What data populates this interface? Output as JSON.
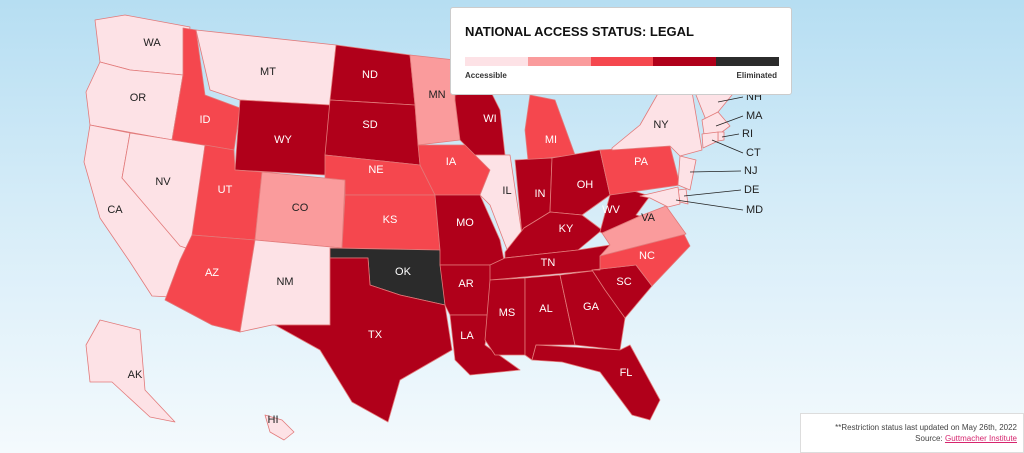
{
  "legend": {
    "title": "NATIONAL ACCESS STATUS: LEGAL",
    "colors": [
      "#fde2e6",
      "#fa9b9c",
      "#f5474e",
      "#b0001a",
      "#2b2b2b"
    ],
    "low_label": "Accessible",
    "high_label": "Eliminated"
  },
  "states": [
    {
      "label": "WA",
      "color": "#fde2e6"
    },
    {
      "label": "OR",
      "color": "#fde2e6"
    },
    {
      "label": "CA",
      "color": "#fde2e6"
    },
    {
      "label": "NV",
      "color": "#fde2e6"
    },
    {
      "label": "ID",
      "color": "#f5474e"
    },
    {
      "label": "MT",
      "color": "#fde2e6"
    },
    {
      "label": "WY",
      "color": "#b0001a"
    },
    {
      "label": "UT",
      "color": "#f5474e"
    },
    {
      "label": "AZ",
      "color": "#f5474e"
    },
    {
      "label": "CO",
      "color": "#fa9b9c"
    },
    {
      "label": "NM",
      "color": "#fde2e6"
    },
    {
      "label": "ND",
      "color": "#b0001a"
    },
    {
      "label": "SD",
      "color": "#b0001a"
    },
    {
      "label": "NE",
      "color": "#f5474e"
    },
    {
      "label": "KS",
      "color": "#f5474e"
    },
    {
      "label": "OK",
      "color": "#2b2b2b"
    },
    {
      "label": "TX",
      "color": "#b0001a"
    },
    {
      "label": "MN",
      "color": "#fa9b9c"
    },
    {
      "label": "IA",
      "color": "#f5474e"
    },
    {
      "label": "MO",
      "color": "#b0001a"
    },
    {
      "label": "AR",
      "color": "#b0001a"
    },
    {
      "label": "LA",
      "color": "#b0001a"
    },
    {
      "label": "WI",
      "color": "#b0001a"
    },
    {
      "label": "IL",
      "color": "#fde2e6"
    },
    {
      "label": "MI",
      "color": "#f5474e"
    },
    {
      "label": "IN",
      "color": "#b0001a"
    },
    {
      "label": "OH",
      "color": "#b0001a"
    },
    {
      "label": "KY",
      "color": "#b0001a"
    },
    {
      "label": "TN",
      "color": "#b0001a"
    },
    {
      "label": "MS",
      "color": "#b0001a"
    },
    {
      "label": "AL",
      "color": "#b0001a"
    },
    {
      "label": "GA",
      "color": "#b0001a"
    },
    {
      "label": "FL",
      "color": "#b0001a"
    },
    {
      "label": "SC",
      "color": "#b0001a"
    },
    {
      "label": "NC",
      "color": "#f5474e"
    },
    {
      "label": "VA",
      "color": "#fa9b9c"
    },
    {
      "label": "WV",
      "color": "#b0001a"
    },
    {
      "label": "PA",
      "color": "#f5474e"
    },
    {
      "label": "NY",
      "color": "#fde2e6"
    },
    {
      "label": "AK",
      "color": "#fde2e6"
    },
    {
      "label": "HI",
      "color": "#fde2e6"
    },
    {
      "label": "NH",
      "color": "#fde2e6"
    },
    {
      "label": "MA",
      "color": "#fde2e6"
    },
    {
      "label": "RI",
      "color": "#fde2e6"
    },
    {
      "label": "CT",
      "color": "#fde2e6"
    },
    {
      "label": "NJ",
      "color": "#fde2e6"
    },
    {
      "label": "DE",
      "color": "#fde2e6"
    },
    {
      "label": "MD",
      "color": "#fde2e6"
    }
  ],
  "footnote": {
    "note": "**Restriction status last updated on May 26th, 2022",
    "source_label": "Source:",
    "source_link": "Guttmacher Institute"
  }
}
